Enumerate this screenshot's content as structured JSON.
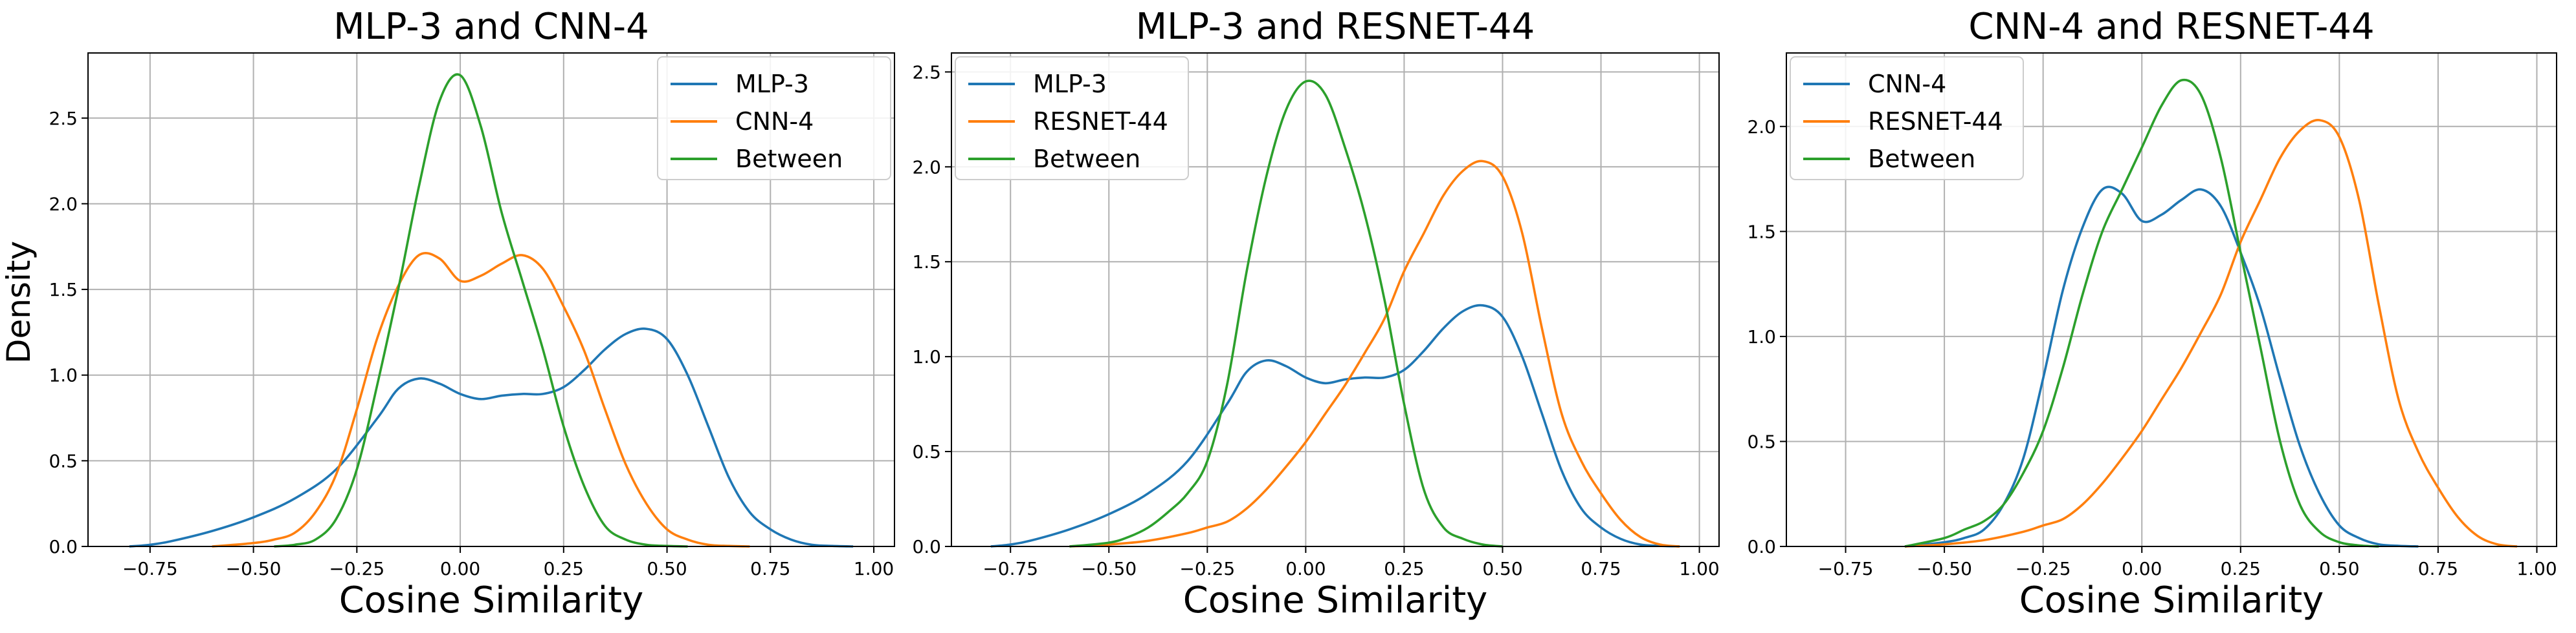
{
  "figure": {
    "ylabel": "Density"
  },
  "colors": {
    "blue": "#1f77b4",
    "orange": "#ff7f0e",
    "green": "#2ca02c",
    "grid": "#b0b0b0",
    "axis": "#000000"
  },
  "chart_data": [
    {
      "type": "line",
      "title": "MLP-3 and CNN-4",
      "xlabel": "Cosine Similarity",
      "ylabel": "Density",
      "xlim": [
        -0.9,
        1.05
      ],
      "ylim": [
        0,
        2.88
      ],
      "xticks": [
        -0.75,
        -0.5,
        -0.25,
        0.0,
        0.25,
        0.5,
        0.75,
        1.0
      ],
      "xtick_labels": [
        "−0.75",
        "−0.50",
        "−0.25",
        "0.00",
        "0.25",
        "0.50",
        "0.75",
        "1.00"
      ],
      "yticks": [
        0.0,
        0.5,
        1.0,
        1.5,
        2.0,
        2.5
      ],
      "ytick_labels": [
        "0.0",
        "0.5",
        "1.0",
        "1.5",
        "2.0",
        "2.5"
      ],
      "grid": true,
      "legend": "upper right",
      "series": [
        {
          "name": "MLP-3",
          "color": "#1f77b4",
          "x": [
            -0.8,
            -0.75,
            -0.7,
            -0.6,
            -0.5,
            -0.4,
            -0.3,
            -0.2,
            -0.15,
            -0.1,
            -0.05,
            0.0,
            0.05,
            0.1,
            0.15,
            0.2,
            0.25,
            0.3,
            0.35,
            0.4,
            0.45,
            0.5,
            0.55,
            0.6,
            0.65,
            0.7,
            0.75,
            0.8,
            0.85,
            0.9,
            0.95
          ],
          "y": [
            0.0,
            0.01,
            0.03,
            0.09,
            0.17,
            0.28,
            0.45,
            0.75,
            0.92,
            0.98,
            0.95,
            0.89,
            0.86,
            0.88,
            0.89,
            0.89,
            0.93,
            1.03,
            1.15,
            1.24,
            1.27,
            1.21,
            1.0,
            0.7,
            0.4,
            0.2,
            0.1,
            0.04,
            0.01,
            0.003,
            0.0
          ]
        },
        {
          "name": "CNN-4",
          "color": "#ff7f0e",
          "x": [
            -0.6,
            -0.5,
            -0.45,
            -0.4,
            -0.35,
            -0.3,
            -0.25,
            -0.2,
            -0.15,
            -0.1,
            -0.05,
            0.0,
            0.05,
            0.1,
            0.15,
            0.2,
            0.25,
            0.3,
            0.35,
            0.4,
            0.45,
            0.5,
            0.55,
            0.6,
            0.65,
            0.7
          ],
          "y": [
            0.0,
            0.02,
            0.04,
            0.08,
            0.2,
            0.42,
            0.8,
            1.22,
            1.52,
            1.7,
            1.68,
            1.55,
            1.58,
            1.65,
            1.7,
            1.62,
            1.4,
            1.14,
            0.8,
            0.48,
            0.25,
            0.1,
            0.04,
            0.01,
            0.003,
            0.0
          ]
        },
        {
          "name": "Between",
          "color": "#2ca02c",
          "x": [
            -0.45,
            -0.4,
            -0.35,
            -0.3,
            -0.25,
            -0.2,
            -0.15,
            -0.1,
            -0.05,
            0.0,
            0.05,
            0.1,
            0.15,
            0.2,
            0.25,
            0.3,
            0.35,
            0.4,
            0.45,
            0.5,
            0.55
          ],
          "y": [
            0.0,
            0.01,
            0.04,
            0.16,
            0.45,
            0.95,
            1.5,
            2.1,
            2.6,
            2.75,
            2.45,
            1.95,
            1.55,
            1.15,
            0.7,
            0.35,
            0.12,
            0.04,
            0.01,
            0.003,
            0.0
          ]
        }
      ]
    },
    {
      "type": "line",
      "title": "MLP-3 and RESNET-44",
      "xlabel": "Cosine Similarity",
      "ylabel": "",
      "xlim": [
        -0.9,
        1.05
      ],
      "ylim": [
        0,
        2.6
      ],
      "xticks": [
        -0.75,
        -0.5,
        -0.25,
        0.0,
        0.25,
        0.5,
        0.75,
        1.0
      ],
      "xtick_labels": [
        "−0.75",
        "−0.50",
        "−0.25",
        "0.00",
        "0.25",
        "0.50",
        "0.75",
        "1.00"
      ],
      "yticks": [
        0.0,
        0.5,
        1.0,
        1.5,
        2.0,
        2.5
      ],
      "ytick_labels": [
        "0.0",
        "0.5",
        "1.0",
        "1.5",
        "2.0",
        "2.5"
      ],
      "grid": true,
      "legend": "upper left",
      "series": [
        {
          "name": "MLP-3",
          "color": "#1f77b4",
          "x": [
            -0.8,
            -0.75,
            -0.7,
            -0.6,
            -0.5,
            -0.4,
            -0.3,
            -0.2,
            -0.15,
            -0.1,
            -0.05,
            0.0,
            0.05,
            0.1,
            0.15,
            0.2,
            0.25,
            0.3,
            0.35,
            0.4,
            0.45,
            0.5,
            0.55,
            0.6,
            0.65,
            0.7,
            0.75,
            0.8,
            0.85,
            0.9,
            0.95
          ],
          "y": [
            0.0,
            0.01,
            0.03,
            0.09,
            0.17,
            0.28,
            0.45,
            0.75,
            0.92,
            0.98,
            0.95,
            0.89,
            0.86,
            0.88,
            0.89,
            0.89,
            0.93,
            1.03,
            1.15,
            1.24,
            1.27,
            1.21,
            1.0,
            0.7,
            0.4,
            0.2,
            0.1,
            0.04,
            0.01,
            0.003,
            0.0
          ]
        },
        {
          "name": "RESNET-44",
          "color": "#ff7f0e",
          "x": [
            -0.6,
            -0.5,
            -0.4,
            -0.3,
            -0.25,
            -0.2,
            -0.15,
            -0.1,
            -0.05,
            0.0,
            0.05,
            0.1,
            0.15,
            0.2,
            0.25,
            0.3,
            0.35,
            0.4,
            0.45,
            0.5,
            0.55,
            0.6,
            0.65,
            0.7,
            0.75,
            0.8,
            0.85,
            0.9,
            0.95
          ],
          "y": [
            0.0,
            0.01,
            0.03,
            0.07,
            0.1,
            0.13,
            0.2,
            0.3,
            0.42,
            0.55,
            0.7,
            0.85,
            1.02,
            1.2,
            1.45,
            1.65,
            1.85,
            1.98,
            2.03,
            1.95,
            1.65,
            1.15,
            0.7,
            0.45,
            0.28,
            0.14,
            0.05,
            0.01,
            0.0
          ]
        },
        {
          "name": "Between",
          "color": "#2ca02c",
          "x": [
            -0.6,
            -0.5,
            -0.45,
            -0.4,
            -0.35,
            -0.3,
            -0.25,
            -0.2,
            -0.15,
            -0.1,
            -0.05,
            0.0,
            0.05,
            0.1,
            0.15,
            0.2,
            0.25,
            0.3,
            0.35,
            0.4,
            0.45,
            0.5
          ],
          "y": [
            0.0,
            0.02,
            0.05,
            0.1,
            0.18,
            0.28,
            0.45,
            0.85,
            1.45,
            1.95,
            2.3,
            2.45,
            2.38,
            2.1,
            1.75,
            1.3,
            0.75,
            0.3,
            0.1,
            0.04,
            0.01,
            0.0
          ]
        }
      ]
    },
    {
      "type": "line",
      "title": "CNN-4 and RESNET-44",
      "xlabel": "Cosine Similarity",
      "ylabel": "",
      "xlim": [
        -0.9,
        1.05
      ],
      "ylim": [
        0,
        2.35
      ],
      "xticks": [
        -0.75,
        -0.5,
        -0.25,
        0.0,
        0.25,
        0.5,
        0.75,
        1.0
      ],
      "xtick_labels": [
        "−0.75",
        "−0.50",
        "−0.25",
        "0.00",
        "0.25",
        "0.50",
        "0.75",
        "1.00"
      ],
      "yticks": [
        0.0,
        0.5,
        1.0,
        1.5,
        2.0
      ],
      "ytick_labels": [
        "0.0",
        "0.5",
        "1.0",
        "1.5",
        "2.0"
      ],
      "grid": true,
      "legend": "upper left",
      "series": [
        {
          "name": "CNN-4",
          "color": "#1f77b4",
          "x": [
            -0.6,
            -0.5,
            -0.45,
            -0.4,
            -0.35,
            -0.3,
            -0.25,
            -0.2,
            -0.15,
            -0.1,
            -0.05,
            0.0,
            0.05,
            0.1,
            0.15,
            0.2,
            0.25,
            0.3,
            0.35,
            0.4,
            0.45,
            0.5,
            0.55,
            0.6,
            0.65,
            0.7
          ],
          "y": [
            0.0,
            0.02,
            0.04,
            0.08,
            0.2,
            0.42,
            0.8,
            1.22,
            1.52,
            1.7,
            1.68,
            1.55,
            1.58,
            1.65,
            1.7,
            1.62,
            1.4,
            1.14,
            0.8,
            0.48,
            0.25,
            0.1,
            0.04,
            0.01,
            0.003,
            0.0
          ]
        },
        {
          "name": "RESNET-44",
          "color": "#ff7f0e",
          "x": [
            -0.6,
            -0.5,
            -0.4,
            -0.3,
            -0.25,
            -0.2,
            -0.15,
            -0.1,
            -0.05,
            0.0,
            0.05,
            0.1,
            0.15,
            0.2,
            0.25,
            0.3,
            0.35,
            0.4,
            0.45,
            0.5,
            0.55,
            0.6,
            0.65,
            0.7,
            0.75,
            0.8,
            0.85,
            0.9,
            0.95
          ],
          "y": [
            0.0,
            0.01,
            0.03,
            0.07,
            0.1,
            0.13,
            0.2,
            0.3,
            0.42,
            0.55,
            0.7,
            0.85,
            1.02,
            1.2,
            1.45,
            1.65,
            1.85,
            1.98,
            2.03,
            1.95,
            1.65,
            1.15,
            0.7,
            0.45,
            0.28,
            0.14,
            0.05,
            0.01,
            0.0
          ]
        },
        {
          "name": "Between",
          "color": "#2ca02c",
          "x": [
            -0.6,
            -0.5,
            -0.45,
            -0.4,
            -0.35,
            -0.3,
            -0.25,
            -0.2,
            -0.15,
            -0.1,
            -0.05,
            0.0,
            0.05,
            0.1,
            0.15,
            0.2,
            0.25,
            0.3,
            0.35,
            0.4,
            0.45,
            0.5,
            0.55,
            0.6
          ],
          "y": [
            0.0,
            0.04,
            0.08,
            0.12,
            0.2,
            0.35,
            0.55,
            0.85,
            1.2,
            1.5,
            1.7,
            1.9,
            2.1,
            2.22,
            2.15,
            1.85,
            1.4,
            0.95,
            0.5,
            0.2,
            0.07,
            0.02,
            0.005,
            0.0
          ]
        }
      ]
    }
  ]
}
